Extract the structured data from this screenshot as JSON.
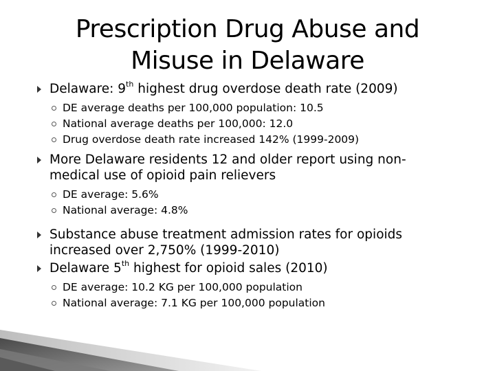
{
  "title": {
    "line1": "Prescription Drug Abuse and",
    "line2": "Misuse in Delaware"
  },
  "bullets": [
    {
      "pre": "Delaware: 9",
      "sup": "th",
      "post": " highest drug overdose death rate (2009)",
      "subs": [
        "DE average deaths per 100,000 population: 10.5",
        "National average deaths per 100,000: 12.0",
        "Drug overdose death rate increased 142% (1999-2009)"
      ]
    },
    {
      "line1": "More Delaware residents 12 and older report using non-",
      "line2": "medical use of opioid pain relievers",
      "subs": [
        "DE average: 5.6%",
        "National average: 4.8%"
      ]
    },
    {
      "line1": "Substance abuse treatment admission rates for opioids",
      "line2": "increased over 2,750% (1999-2010)"
    },
    {
      "pre": "Delaware 5",
      "sup": "th",
      "post": " highest for opioid sales (2010)",
      "subs": [
        "DE average: 10.2 KG per 100,000 population",
        "National average: 7.1 KG per 100,000 population"
      ]
    }
  ],
  "colors": {
    "text": "#000000",
    "marker": "#333333",
    "stripe_dark": "#6b6b6b",
    "stripe_light": "#d9d9d9"
  }
}
